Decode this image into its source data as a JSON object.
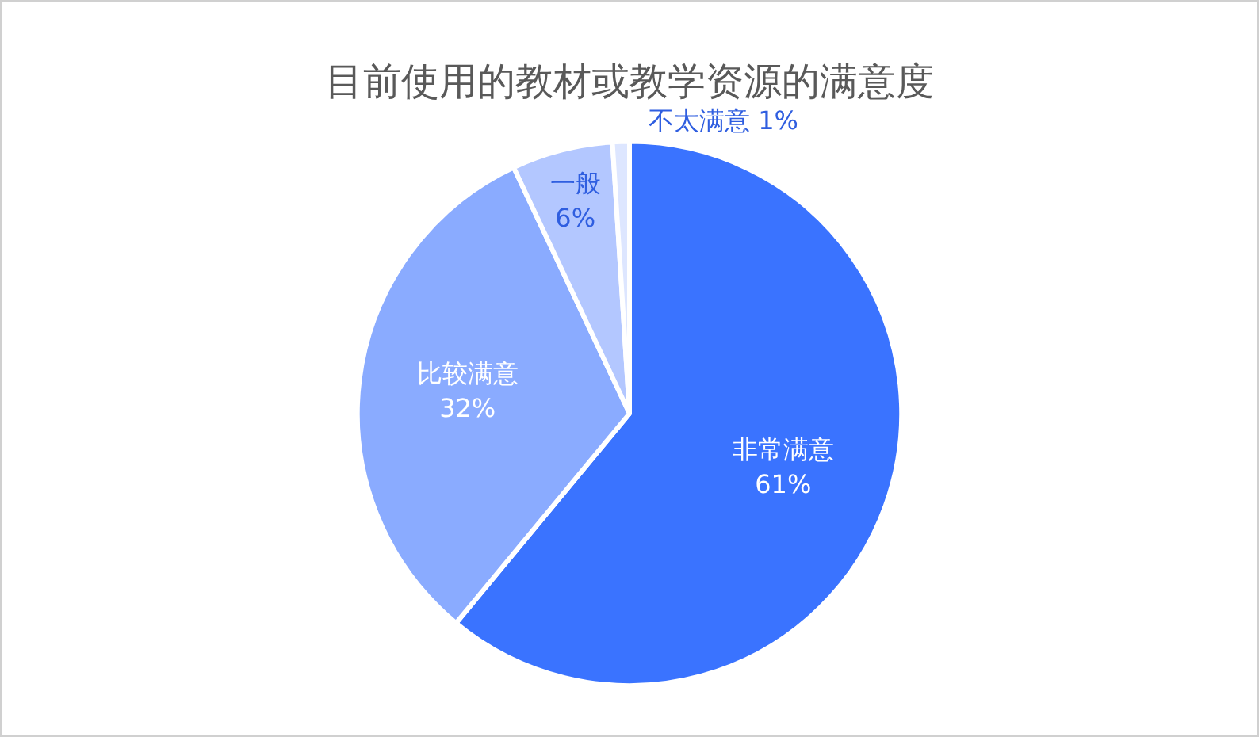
{
  "chart_data": {
    "type": "pie",
    "title": "目前使用的教材或教学资源的满意度",
    "categories": [
      "非常满意",
      "比较满意",
      "一般",
      "不太满意"
    ],
    "values": [
      61,
      32,
      6,
      1
    ],
    "value_labels": [
      "61%",
      "32%",
      "6%",
      "1%"
    ],
    "colors": [
      "#3a73ff",
      "#8aabff",
      "#b3c7ff",
      "#dde6ff"
    ],
    "legend": false
  }
}
